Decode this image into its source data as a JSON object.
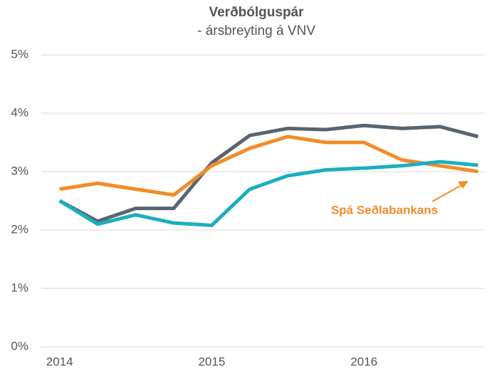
{
  "chart_data": {
    "type": "line",
    "title": "Verðbólguspár",
    "subtitle": "- ársbreyting á VNV",
    "x": [
      2014,
      2014.25,
      2014.5,
      2014.75,
      2015,
      2015.25,
      2015.5,
      2015.75,
      2016,
      2016.25,
      2016.5,
      2016.75
    ],
    "series": [
      {
        "color": "#5a6470",
        "values": [
          2.5,
          2.15,
          2.37,
          2.37,
          3.15,
          3.62,
          3.74,
          3.72,
          3.79,
          3.74,
          3.77,
          3.6
        ]
      },
      {
        "name": "Spá Seðlabankans",
        "color": "#f28c28",
        "values": [
          2.7,
          2.8,
          2.7,
          2.6,
          3.1,
          3.4,
          3.6,
          3.5,
          3.5,
          3.2,
          3.1,
          3.0
        ]
      },
      {
        "color": "#1aafbf",
        "values": [
          2.5,
          2.1,
          2.26,
          2.12,
          2.08,
          2.7,
          2.93,
          3.03,
          3.06,
          3.1,
          3.17,
          3.11
        ]
      }
    ],
    "xlim": [
      2013.88,
      2016.79
    ],
    "xticks": [
      2014,
      2015,
      2016
    ],
    "ylim": [
      0,
      5
    ],
    "yticks": [
      {
        "value": 0,
        "label": "0%"
      },
      {
        "value": 1,
        "label": "1%"
      },
      {
        "value": 2,
        "label": "2%"
      },
      {
        "value": 3,
        "label": "3%"
      },
      {
        "value": 4,
        "label": "4%"
      },
      {
        "value": 5,
        "label": "5%"
      }
    ],
    "grid": true
  }
}
